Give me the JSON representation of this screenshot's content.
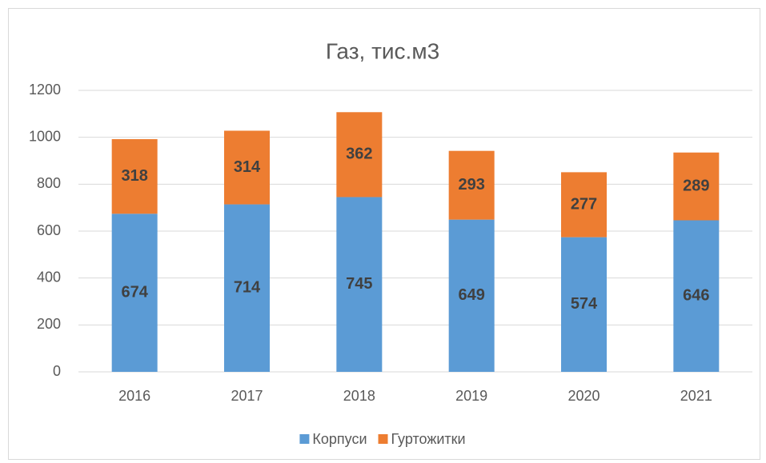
{
  "chart_data": {
    "type": "stacked_bar",
    "title": "Газ, тис.м3",
    "categories": [
      "2016",
      "2017",
      "2018",
      "2019",
      "2020",
      "2021"
    ],
    "series": [
      {
        "name": "Корпуси",
        "color": "#5b9bd5",
        "values": [
          674,
          714,
          745,
          649,
          574,
          646
        ]
      },
      {
        "name": "Гуртожитки",
        "color": "#ed7d31",
        "values": [
          318,
          314,
          362,
          293,
          277,
          289
        ]
      }
    ],
    "ylim": [
      0,
      1200
    ],
    "yticks": [
      0,
      200,
      400,
      600,
      800,
      1000,
      1200
    ],
    "grid": true,
    "legend": "bottom"
  }
}
